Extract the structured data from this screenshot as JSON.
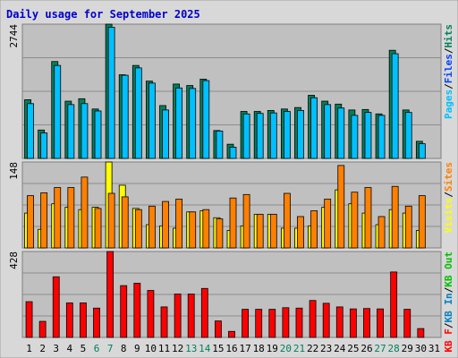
{
  "chart_data": {
    "type": "bar",
    "title": "Daily usage for September 2025",
    "days": [
      "1",
      "2",
      "3",
      "4",
      "5",
      "6",
      "7",
      "8",
      "9",
      "10",
      "11",
      "12",
      "13",
      "14",
      "15",
      "16",
      "17",
      "18",
      "19",
      "20",
      "21",
      "22",
      "23",
      "24",
      "25",
      "26",
      "27",
      "28",
      "29",
      "30",
      "31"
    ],
    "weekend_days": [
      "6",
      "7",
      "13",
      "14",
      "20",
      "21",
      "27",
      "28"
    ],
    "colors": {
      "hits": "#00805c",
      "files": "#0040ff",
      "pages": "#00c0ff",
      "visits": "#ffff00",
      "sites": "#ff8000",
      "kbin": "#0080c0",
      "kbout": "#00c000",
      "kbf": "#ff0000",
      "weekday_label": "#000000",
      "weekend_label": "#00805c",
      "panel_bg": "#c0c0c0",
      "frame_bg": "#d8d8d8"
    },
    "panels": [
      {
        "id": "hits",
        "ymax_label": "2744",
        "ymax": 2744,
        "legend": [
          {
            "text": "Pages",
            "color": "#00c0ff"
          },
          {
            "text": "/",
            "color": "#000000"
          },
          {
            "text": "Files",
            "color": "#0040ff"
          },
          {
            "text": "/",
            "color": "#000000"
          },
          {
            "text": "Hits",
            "color": "#00805c"
          }
        ],
        "series": [
          {
            "name": "Hits",
            "values": [
              1200,
              580,
              1980,
              1170,
              1220,
              1010,
              2744,
              1710,
              1900,
              1580,
              1080,
              1520,
              1490,
              1620,
              570,
              290,
              960,
              960,
              980,
              1010,
              1040,
              1290,
              1170,
              1110,
              990,
              1000,
              910,
              2210,
              990,
              350,
              0
            ]
          },
          {
            "name": "Pages",
            "values": [
              1120,
              520,
              1900,
              1100,
              1120,
              970,
              2680,
              1700,
              1850,
              1540,
              990,
              1440,
              1430,
              1590,
              560,
              230,
              910,
              920,
              930,
              960,
              980,
              1240,
              1100,
              1030,
              880,
              940,
              880,
              2140,
              940,
              300,
              0
            ]
          }
        ]
      },
      {
        "id": "visits",
        "ymax_label": "148",
        "ymax": 148,
        "legend": [
          {
            "text": "Visits",
            "color": "#ffff00"
          },
          {
            "text": "/",
            "color": "#000000"
          },
          {
            "text": "Sites",
            "color": "#ff8000"
          }
        ],
        "series": [
          {
            "name": "Visits",
            "values": [
              60,
              32,
              76,
              70,
              66,
              70,
              148,
              108,
              68,
              40,
              38,
              34,
              62,
              64,
              52,
              30,
              38,
              58,
              58,
              34,
              34,
              38,
              70,
              100,
              76,
              60,
              40,
              66,
              60,
              30,
              0
            ]
          },
          {
            "name": "Sites",
            "values": [
              90,
              95,
              104,
              104,
              122,
              68,
              94,
              88,
              66,
              72,
              80,
              84,
              62,
              66,
              50,
              86,
              92,
              58,
              58,
              94,
              54,
              64,
              84,
              142,
              96,
              104,
              54,
              106,
              72,
              90,
              0
            ]
          }
        ]
      },
      {
        "id": "kbytes",
        "ymax_label": "428",
        "ymax": 428,
        "legend": [
          {
            "text": "KB F",
            "color": "#ff0000"
          },
          {
            "text": "/",
            "color": "#000000"
          },
          {
            "text": "KB In",
            "color": "#0080c0"
          },
          {
            "text": "/",
            "color": "#000000"
          },
          {
            "text": "KB Out",
            "color": "#00c000"
          }
        ],
        "series": [
          {
            "name": "KB F",
            "values": [
              178,
              80,
              302,
              172,
              172,
              146,
              428,
              258,
              270,
              234,
              152,
              216,
              216,
              244,
              82,
              30,
              140,
              140,
              140,
              148,
              146,
              184,
              170,
              152,
              142,
              144,
              142,
              326,
              140,
              44,
              0
            ]
          }
        ]
      }
    ]
  }
}
